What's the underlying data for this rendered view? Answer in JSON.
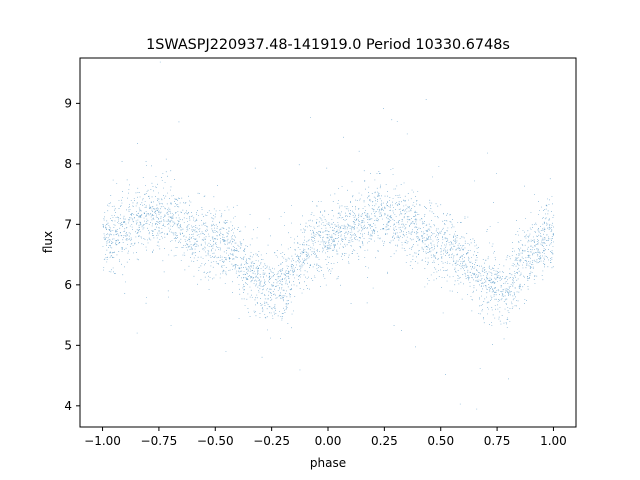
{
  "chart_data": {
    "type": "scatter",
    "title": "1SWASPJ220937.48-141919.0 Period 10330.6748s",
    "xlabel": "phase",
    "ylabel": "flux",
    "xlim": [
      -1.1,
      1.1
    ],
    "ylim": [
      3.65,
      9.75
    ],
    "xticks": [
      -1.0,
      -0.75,
      -0.5,
      -0.25,
      0.0,
      0.25,
      0.5,
      0.75,
      1.0
    ],
    "xtick_labels": [
      "−1.00",
      "−0.75",
      "−0.50",
      "−0.25",
      "0.00",
      "0.25",
      "0.50",
      "0.75",
      "1.00"
    ],
    "yticks": [
      4,
      5,
      6,
      7,
      8,
      9
    ],
    "ytick_labels": [
      "4",
      "5",
      "6",
      "7",
      "8",
      "9"
    ],
    "grid": false,
    "marker_color": "#1f77b4",
    "series": [
      {
        "trend_phase": [
          -1.0,
          -0.75,
          -0.5,
          -0.25,
          0.0,
          0.25,
          0.5,
          0.75,
          1.0
        ],
        "trend_flux": [
          6.8,
          7.15,
          6.7,
          5.95,
          6.8,
          7.15,
          6.7,
          5.95,
          6.8
        ],
        "point_count": 14000
      }
    ]
  }
}
